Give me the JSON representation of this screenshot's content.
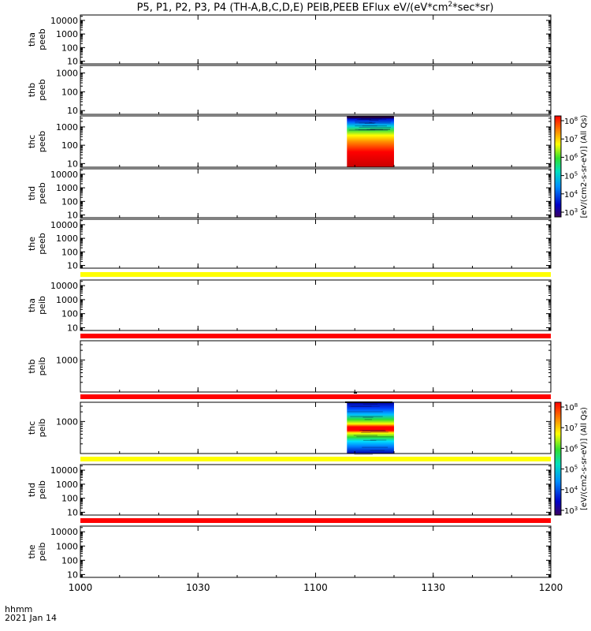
{
  "title": "P5, P1, P2, P3, P4 (TH-A,B,C,D,E) PEIB,PEEB EFlux eV/(eV*cm²*sec*sr)",
  "title_parts": {
    "prefix": "P5, P1, P2, P3, P4 (TH-A,B,C,D,E) PEIB,PEEB EFlux eV/(eV*cm",
    "sup": "2",
    "suffix": "*sec*sr)"
  },
  "footer": {
    "time_label": "hhmm",
    "date_label": "2021 Jan 14"
  },
  "colorbar_label": "[eV/(cm2-s-sr-eV)] (All Qs)",
  "colors": {
    "yellow_band": "#ffff00",
    "red_band": "#ff0000",
    "axis": "#000000"
  },
  "chart_data": {
    "type": "heatmap",
    "x_axis": {
      "range": [
        "1000",
        "1200"
      ],
      "tick_labels": [
        "1000",
        "1030",
        "1100",
        "1130",
        "1200"
      ]
    },
    "panels": [
      {
        "probe": "tha",
        "instrument": "peeb",
        "ylabel": [
          "tha",
          "peeb"
        ],
        "yscale": "log",
        "yticks": [
          "10",
          "100",
          "1000",
          "10000"
        ],
        "data_block": null,
        "band_below": null
      },
      {
        "probe": "thb",
        "instrument": "peeb",
        "ylabel": [
          "thb",
          "peeb"
        ],
        "yscale": "log",
        "yticks": [
          "10",
          "100",
          "1000"
        ],
        "data_block": null,
        "band_below": null
      },
      {
        "probe": "thc",
        "instrument": "peeb",
        "ylabel": [
          "thc",
          "peeb"
        ],
        "yscale": "log",
        "yticks": [
          "10",
          "100",
          "1000"
        ],
        "data_block": {
          "x_start": "1108",
          "x_end": "1120",
          "kind": "electron"
        },
        "band_below": null
      },
      {
        "probe": "thd",
        "instrument": "peeb",
        "ylabel": [
          "thd",
          "peeb"
        ],
        "yscale": "log",
        "yticks": [
          "10",
          "100",
          "1000",
          "10000"
        ],
        "data_block": null,
        "band_below": null
      },
      {
        "probe": "the",
        "instrument": "peeb",
        "ylabel": [
          "the",
          "peeb"
        ],
        "yscale": "log",
        "yticks": [
          "10",
          "100",
          "1000",
          "10000"
        ],
        "data_block": null,
        "band_below": "yellow"
      },
      {
        "probe": "tha",
        "instrument": "peib",
        "ylabel": [
          "tha",
          "peib"
        ],
        "yscale": "log",
        "yticks": [
          "10",
          "100",
          "1000",
          "10000"
        ],
        "data_block": null,
        "band_below": "red"
      },
      {
        "probe": "thb",
        "instrument": "peib",
        "ylabel": [
          "thb",
          "peib"
        ],
        "yscale": "log",
        "yticks": [
          "1000"
        ],
        "data_block": null,
        "band_below": "red"
      },
      {
        "probe": "thc",
        "instrument": "peib",
        "ylabel": [
          "thc",
          "peib"
        ],
        "yscale": "log",
        "yticks": [
          "1000"
        ],
        "data_block": {
          "x_start": "1108",
          "x_end": "1120",
          "kind": "ion"
        },
        "band_below": "yellow"
      },
      {
        "probe": "thd",
        "instrument": "peib",
        "ylabel": [
          "thd",
          "peib"
        ],
        "yscale": "log",
        "yticks": [
          "10",
          "100",
          "1000",
          "10000"
        ],
        "data_block": null,
        "band_below": "red"
      },
      {
        "probe": "the",
        "instrument": "peib",
        "ylabel": [
          "the",
          "peib"
        ],
        "yscale": "log",
        "yticks": [
          "10",
          "100",
          "1000",
          "10000"
        ],
        "data_block": null,
        "band_below": null
      }
    ],
    "colorbars": [
      {
        "near_panel": 2,
        "tick_exponents": [
          "3",
          "4",
          "5",
          "6",
          "7",
          "8"
        ],
        "label": "[eV/(cm2-s-sr-eV)] (All Qs)"
      },
      {
        "near_panel": 7,
        "tick_exponents": [
          "3",
          "4",
          "5",
          "6",
          "7",
          "8"
        ],
        "label": "[eV/(cm2-s-sr-eV)] (All Qs)"
      }
    ]
  }
}
